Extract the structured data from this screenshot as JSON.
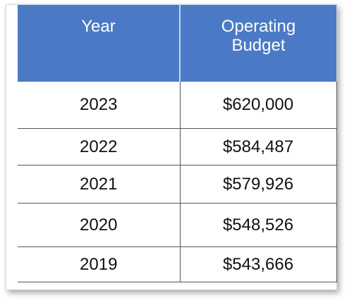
{
  "table": {
    "headers": {
      "year": "Year",
      "budget_line1": "Operating",
      "budget_line2": "Budget"
    },
    "rows": [
      {
        "year": "2023",
        "budget": "$620,000"
      },
      {
        "year": "2022",
        "budget": "$584,487"
      },
      {
        "year": "2021",
        "budget": "$579,926"
      },
      {
        "year": "2020",
        "budget": "$548,526"
      },
      {
        "year": "2019",
        "budget": "$543,666"
      }
    ]
  },
  "colors": {
    "header_bg": "#4a7ac6",
    "header_text": "#ffffff"
  }
}
